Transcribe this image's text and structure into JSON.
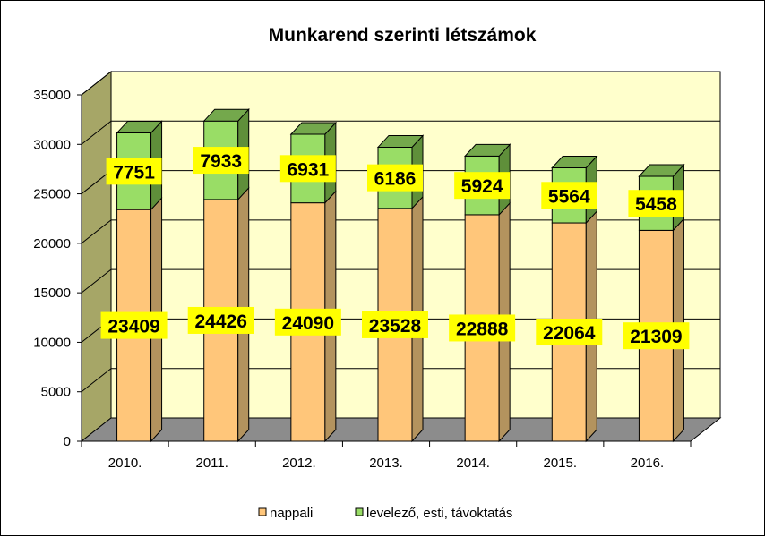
{
  "chart_data": {
    "type": "bar",
    "stacked": true,
    "three_d": true,
    "title": "Munkarend szerinti létszámok",
    "categories": [
      "2010.",
      "2011.",
      "2012.",
      "2013.",
      "2014.",
      "2015.",
      "2016."
    ],
    "series": [
      {
        "name": "nappali",
        "values": [
          23409,
          24426,
          24090,
          23528,
          22888,
          22064,
          21309
        ]
      },
      {
        "name": "levelező, esti, távoktatás",
        "values": [
          7751,
          7933,
          6931,
          6186,
          5924,
          5564,
          5458
        ]
      }
    ],
    "ylim": [
      0,
      35000
    ],
    "yticks": [
      0,
      5000,
      10000,
      15000,
      20000,
      25000,
      30000,
      35000
    ],
    "grid": true,
    "legend_position": "bottom",
    "data_labels": true
  },
  "colors": {
    "nappali_front": "#FFC67A",
    "nappali_side": "#B3935E",
    "nappali_top": "#FFD9A8",
    "levelezo_front": "#99DD66",
    "levelezo_side": "#5F8F3A",
    "levelezo_top": "#74A84C",
    "wall": "#FFFFCC",
    "side_wall": "#A6A667",
    "floor": "#8C8C8C",
    "label_bg": "#FFFF00"
  }
}
